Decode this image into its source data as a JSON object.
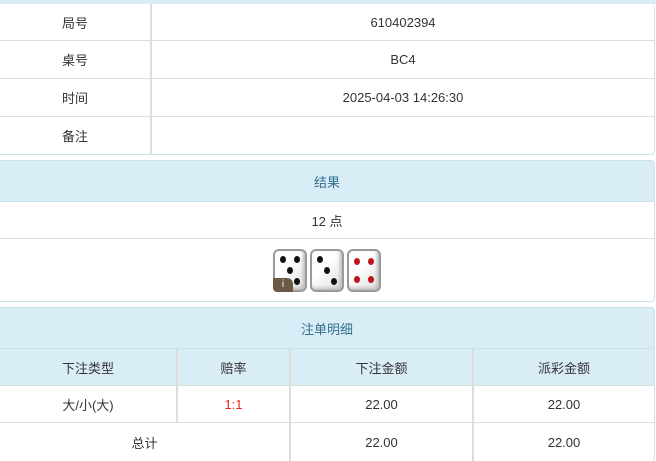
{
  "info": [
    {
      "label": "局号",
      "value": "610402394"
    },
    {
      "label": "桌号",
      "value": "BC4"
    },
    {
      "label": "时间",
      "value": "2025-04-03 14:26:30"
    },
    {
      "label": "备注",
      "value": ""
    }
  ],
  "result": {
    "title": "结果",
    "points": "12 点",
    "dice": [
      5,
      3,
      4
    ],
    "info_badge": "i"
  },
  "bets": {
    "title": "注单明细",
    "columns": [
      "下注类型",
      "赔率",
      "下注金额",
      "派彩金额"
    ],
    "rows": [
      {
        "type": "大/小(大)",
        "odds": "1:1",
        "amount": "22.00",
        "payout": "22.00"
      }
    ],
    "total": {
      "label": "总计",
      "amount": "22.00",
      "payout": "22.00"
    }
  },
  "colors": {
    "header_bg": "#d9edf7",
    "header_text": "#31708f",
    "odds": "#e8281c"
  }
}
